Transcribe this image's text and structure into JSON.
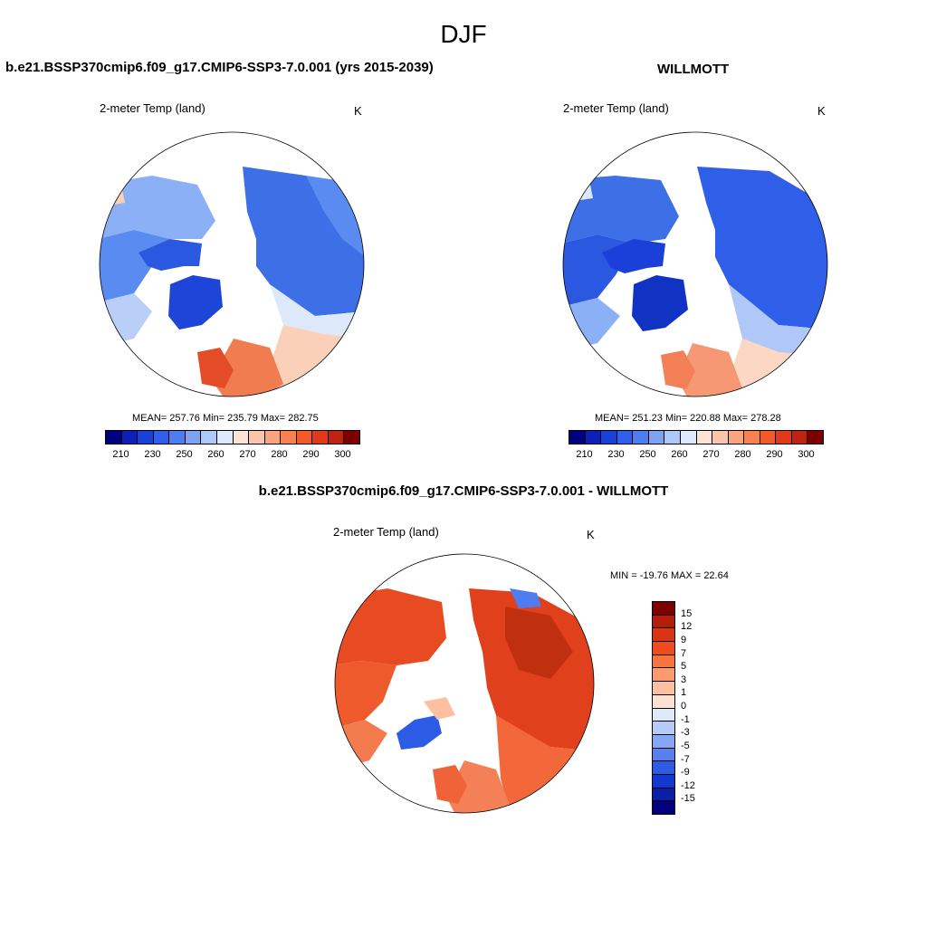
{
  "figure_title": "DJF",
  "panels": [
    {
      "title": "b.e21.BSSP370cmip6.f09_g17.CMIP6-SSP3-7.0.001 (yrs 2015-2039)",
      "field_label": "2-meter Temp (land)",
      "units": "K",
      "stats": "MEAN= 257.76  Min= 235.79  Max= 282.75"
    },
    {
      "title": "WILLMOTT",
      "field_label": "2-meter Temp (land)",
      "units": "K",
      "stats": "MEAN= 251.23  Min= 220.88  Max= 278.28"
    },
    {
      "title": "b.e21.BSSP370cmip6.f09_g17.CMIP6-SSP3-7.0.001 - WILLMOTT",
      "field_label": "2-meter Temp (land)",
      "units": "K",
      "stats": "MIN = -19.76 MAX =  22.64"
    }
  ],
  "abs_colorbar": {
    "colors": [
      "#00007f",
      "#0c1fb8",
      "#1b3fd9",
      "#2f5fe8",
      "#4d7df0",
      "#7ea3f5",
      "#b0c8f7",
      "#dce8fb",
      "#fde3d3",
      "#fcc4a8",
      "#fba47f",
      "#f8814f",
      "#f35a2a",
      "#e3391b",
      "#c0230f",
      "#7f0000"
    ],
    "tick_labels": [
      "210",
      "230",
      "250",
      "260",
      "270",
      "280",
      "290",
      "300"
    ]
  },
  "diff_colorbar": {
    "colors": [
      "#7f0000",
      "#b21e0a",
      "#d83512",
      "#ef4b1e",
      "#f8733e",
      "#fb9a6d",
      "#fcc0a0",
      "#fde2d2",
      "#dde8fb",
      "#b6cbf7",
      "#86a8f4",
      "#5580ee",
      "#2c5be6",
      "#1138d1",
      "#0a1fa8",
      "#00007f"
    ],
    "tick_labels": [
      "15",
      "12",
      "9",
      "7",
      "5",
      "3",
      "1",
      "0",
      "-1",
      "-3",
      "-5",
      "-7",
      "-9",
      "-12",
      "-15"
    ]
  }
}
